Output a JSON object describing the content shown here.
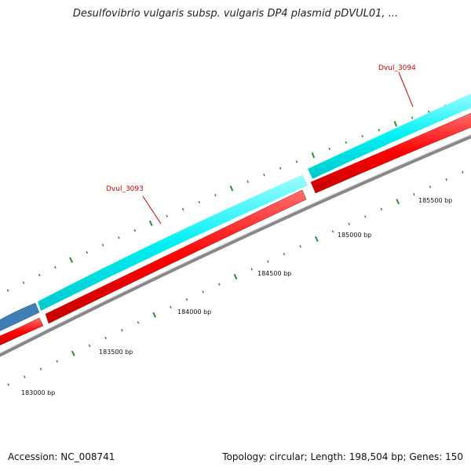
{
  "title": "Desulfovibrio vulgaris subsp. vulgaris DP4 plasmid pDVUL01, ...",
  "colors": {
    "cyan_track": "#00f0f4",
    "red_track": "#ff0000",
    "blue_gene": "#3f7fb5",
    "backbone": "#808080",
    "tick": "#2a8f2a",
    "label_red": "#d40000"
  },
  "ticks": [
    {
      "label": "183000 bp"
    },
    {
      "label": "183500 bp"
    },
    {
      "label": "184000 bp"
    },
    {
      "label": "184500 bp"
    },
    {
      "label": "185000 bp"
    },
    {
      "label": "185500 bp"
    }
  ],
  "genes": [
    {
      "label": "Dvul_3093"
    },
    {
      "label": "Dvul_3094"
    }
  ],
  "footer": {
    "accession": "Accession: NC_008741",
    "topology": "Topology: circular; Length: 198,504 bp; Genes: 150"
  }
}
